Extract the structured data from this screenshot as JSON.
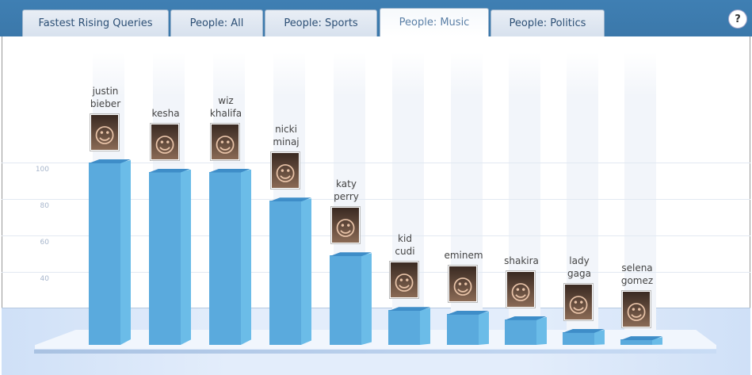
{
  "tabs": [
    {
      "label": "Fastest Rising Queries"
    },
    {
      "label": "People: All"
    },
    {
      "label": "People: Sports"
    },
    {
      "label": "People: Music",
      "active": true
    },
    {
      "label": "People: Politics"
    }
  ],
  "help_label": "?",
  "chart_data": {
    "type": "bar",
    "categories": [
      "justin bieber",
      "kesha",
      "wiz khalifa",
      "nicki minaj",
      "katy perry",
      "kid cudi",
      "eminem",
      "shakira",
      "lady gaga",
      "selena gomez"
    ],
    "label_lines": [
      [
        "justin",
        "bieber"
      ],
      [
        "kesha"
      ],
      [
        "wiz",
        "khalifa"
      ],
      [
        "nicki",
        "minaj"
      ],
      [
        "katy",
        "perry"
      ],
      [
        "kid",
        "cudi"
      ],
      [
        "eminem"
      ],
      [
        "shakira"
      ],
      [
        "lady",
        "gaga"
      ],
      [
        "selena",
        "gomez"
      ]
    ],
    "values": [
      100,
      95,
      95,
      79,
      49,
      19,
      17,
      14,
      7,
      3
    ],
    "yticks": [
      "100",
      "80",
      "60",
      "40"
    ],
    "ylim": [
      0,
      100
    ],
    "grid": true,
    "bar_color": "#5aaadd"
  }
}
